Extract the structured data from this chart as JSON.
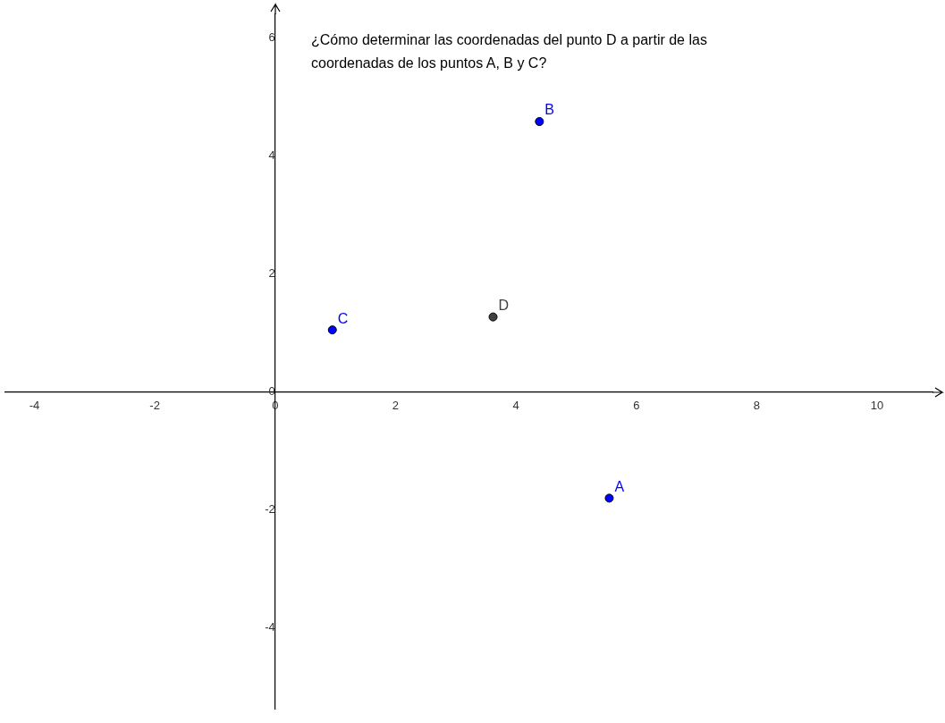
{
  "chart_data": {
    "type": "scatter",
    "title": "¿Cómo determinar las coordenadas del punto D a partir de las coordenadas de los puntos A, B y C?",
    "series": [
      {
        "name": "A",
        "color": "#0000ff",
        "x": [
          5.55
        ],
        "values": [
          -1.8
        ]
      },
      {
        "name": "B",
        "color": "#0000ff",
        "x": [
          4.39
        ],
        "values": [
          4.58
        ]
      },
      {
        "name": "C",
        "color": "#0000ff",
        "x": [
          0.95
        ],
        "values": [
          1.05
        ]
      },
      {
        "name": "D",
        "color": "#404040",
        "x": [
          3.62
        ],
        "values": [
          1.27
        ]
      }
    ],
    "xlim": [
      -4.49,
      10.92
    ],
    "ylim": [
      -5.37,
      6.4
    ],
    "xticks": [
      -4,
      -2,
      0,
      2,
      4,
      6,
      8,
      10
    ],
    "yticks": [
      -4,
      -2,
      0,
      2,
      4,
      6
    ],
    "grid": false,
    "legend": false,
    "marker": "circle"
  }
}
